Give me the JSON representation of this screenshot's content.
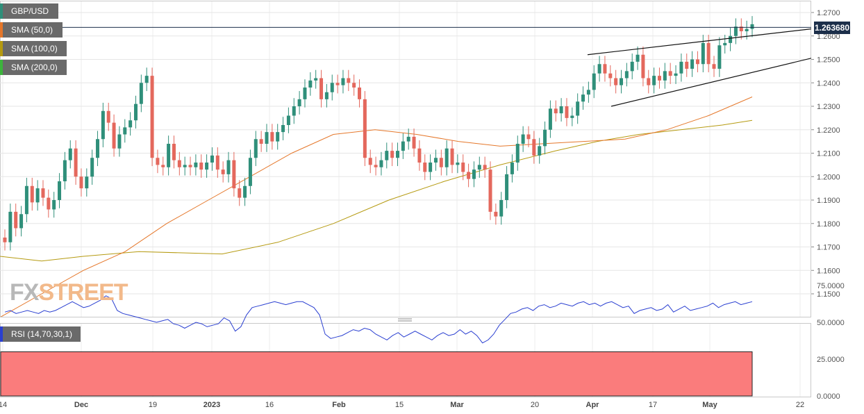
{
  "chart_data": [
    {
      "type": "candlestick",
      "symbol": "GBP/USD",
      "ylim": [
        1.14,
        1.275
      ],
      "y_ticks": [
        "1.2700",
        "1.2600",
        "1.2500",
        "1.2400",
        "1.2300",
        "1.2200",
        "1.2100",
        "1.2000",
        "1.1900",
        "1.1800",
        "1.1700",
        "1.1600",
        "1.1500"
      ],
      "x_ticks": [
        "14",
        "Dec",
        "19",
        "2023",
        "16",
        "Feb",
        "15",
        "Mar",
        "20",
        "Apr",
        "17",
        "May",
        "22"
      ],
      "last_price": "1.263680",
      "indicators": [
        {
          "name": "SMA (50,0)",
          "color": "#e5772a"
        },
        {
          "name": "SMA (100,0)",
          "color": "#b59a10"
        },
        {
          "name": "SMA (200,0)",
          "color": "#3cb43c"
        }
      ],
      "colors": {
        "up": "#2f8f7a",
        "down": "#e4685d"
      }
    },
    {
      "type": "line",
      "name": "RSI (14,70,30,1)",
      "ylim": [
        0,
        100
      ],
      "y_ticks": [
        "75.0000",
        "50.0000",
        "25.0000",
        "0.0000"
      ],
      "overbought": 70,
      "oversold": 30,
      "line_color": "#2a3fd1"
    }
  ],
  "watermark": {
    "part1": "FX",
    "part2": "STREET"
  }
}
